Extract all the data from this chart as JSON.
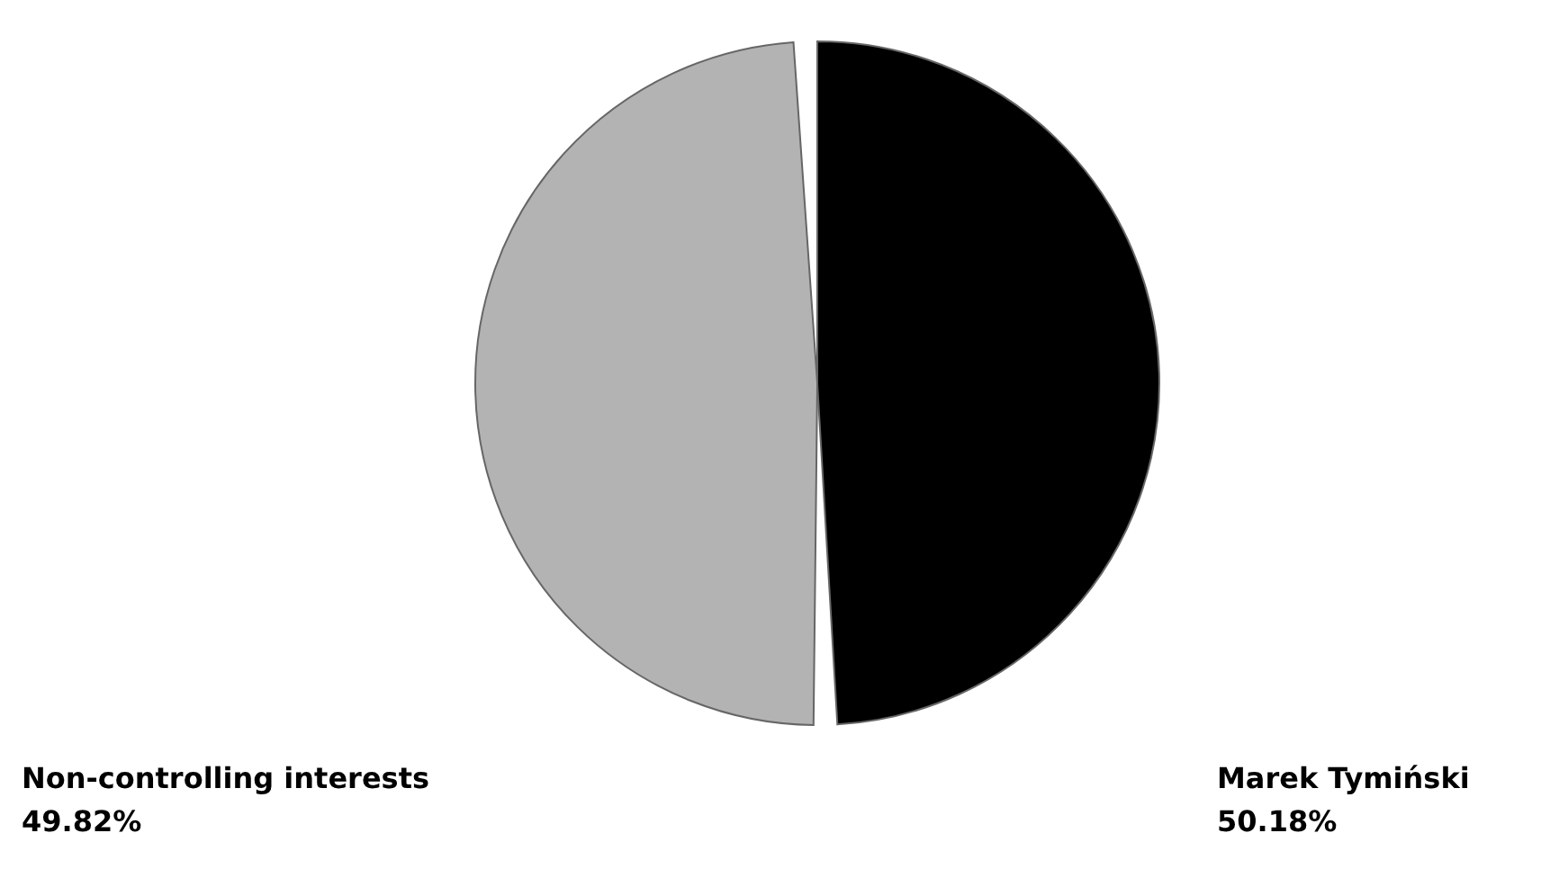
{
  "chart_data": {
    "type": "pie",
    "categories": [
      "Marek Tymiński",
      "Non-controlling interests"
    ],
    "values": [
      50.18,
      49.82
    ],
    "colors": [
      "#000000",
      "#b3b3b3"
    ],
    "value_labels": [
      "50.18%",
      "49.82%"
    ]
  }
}
